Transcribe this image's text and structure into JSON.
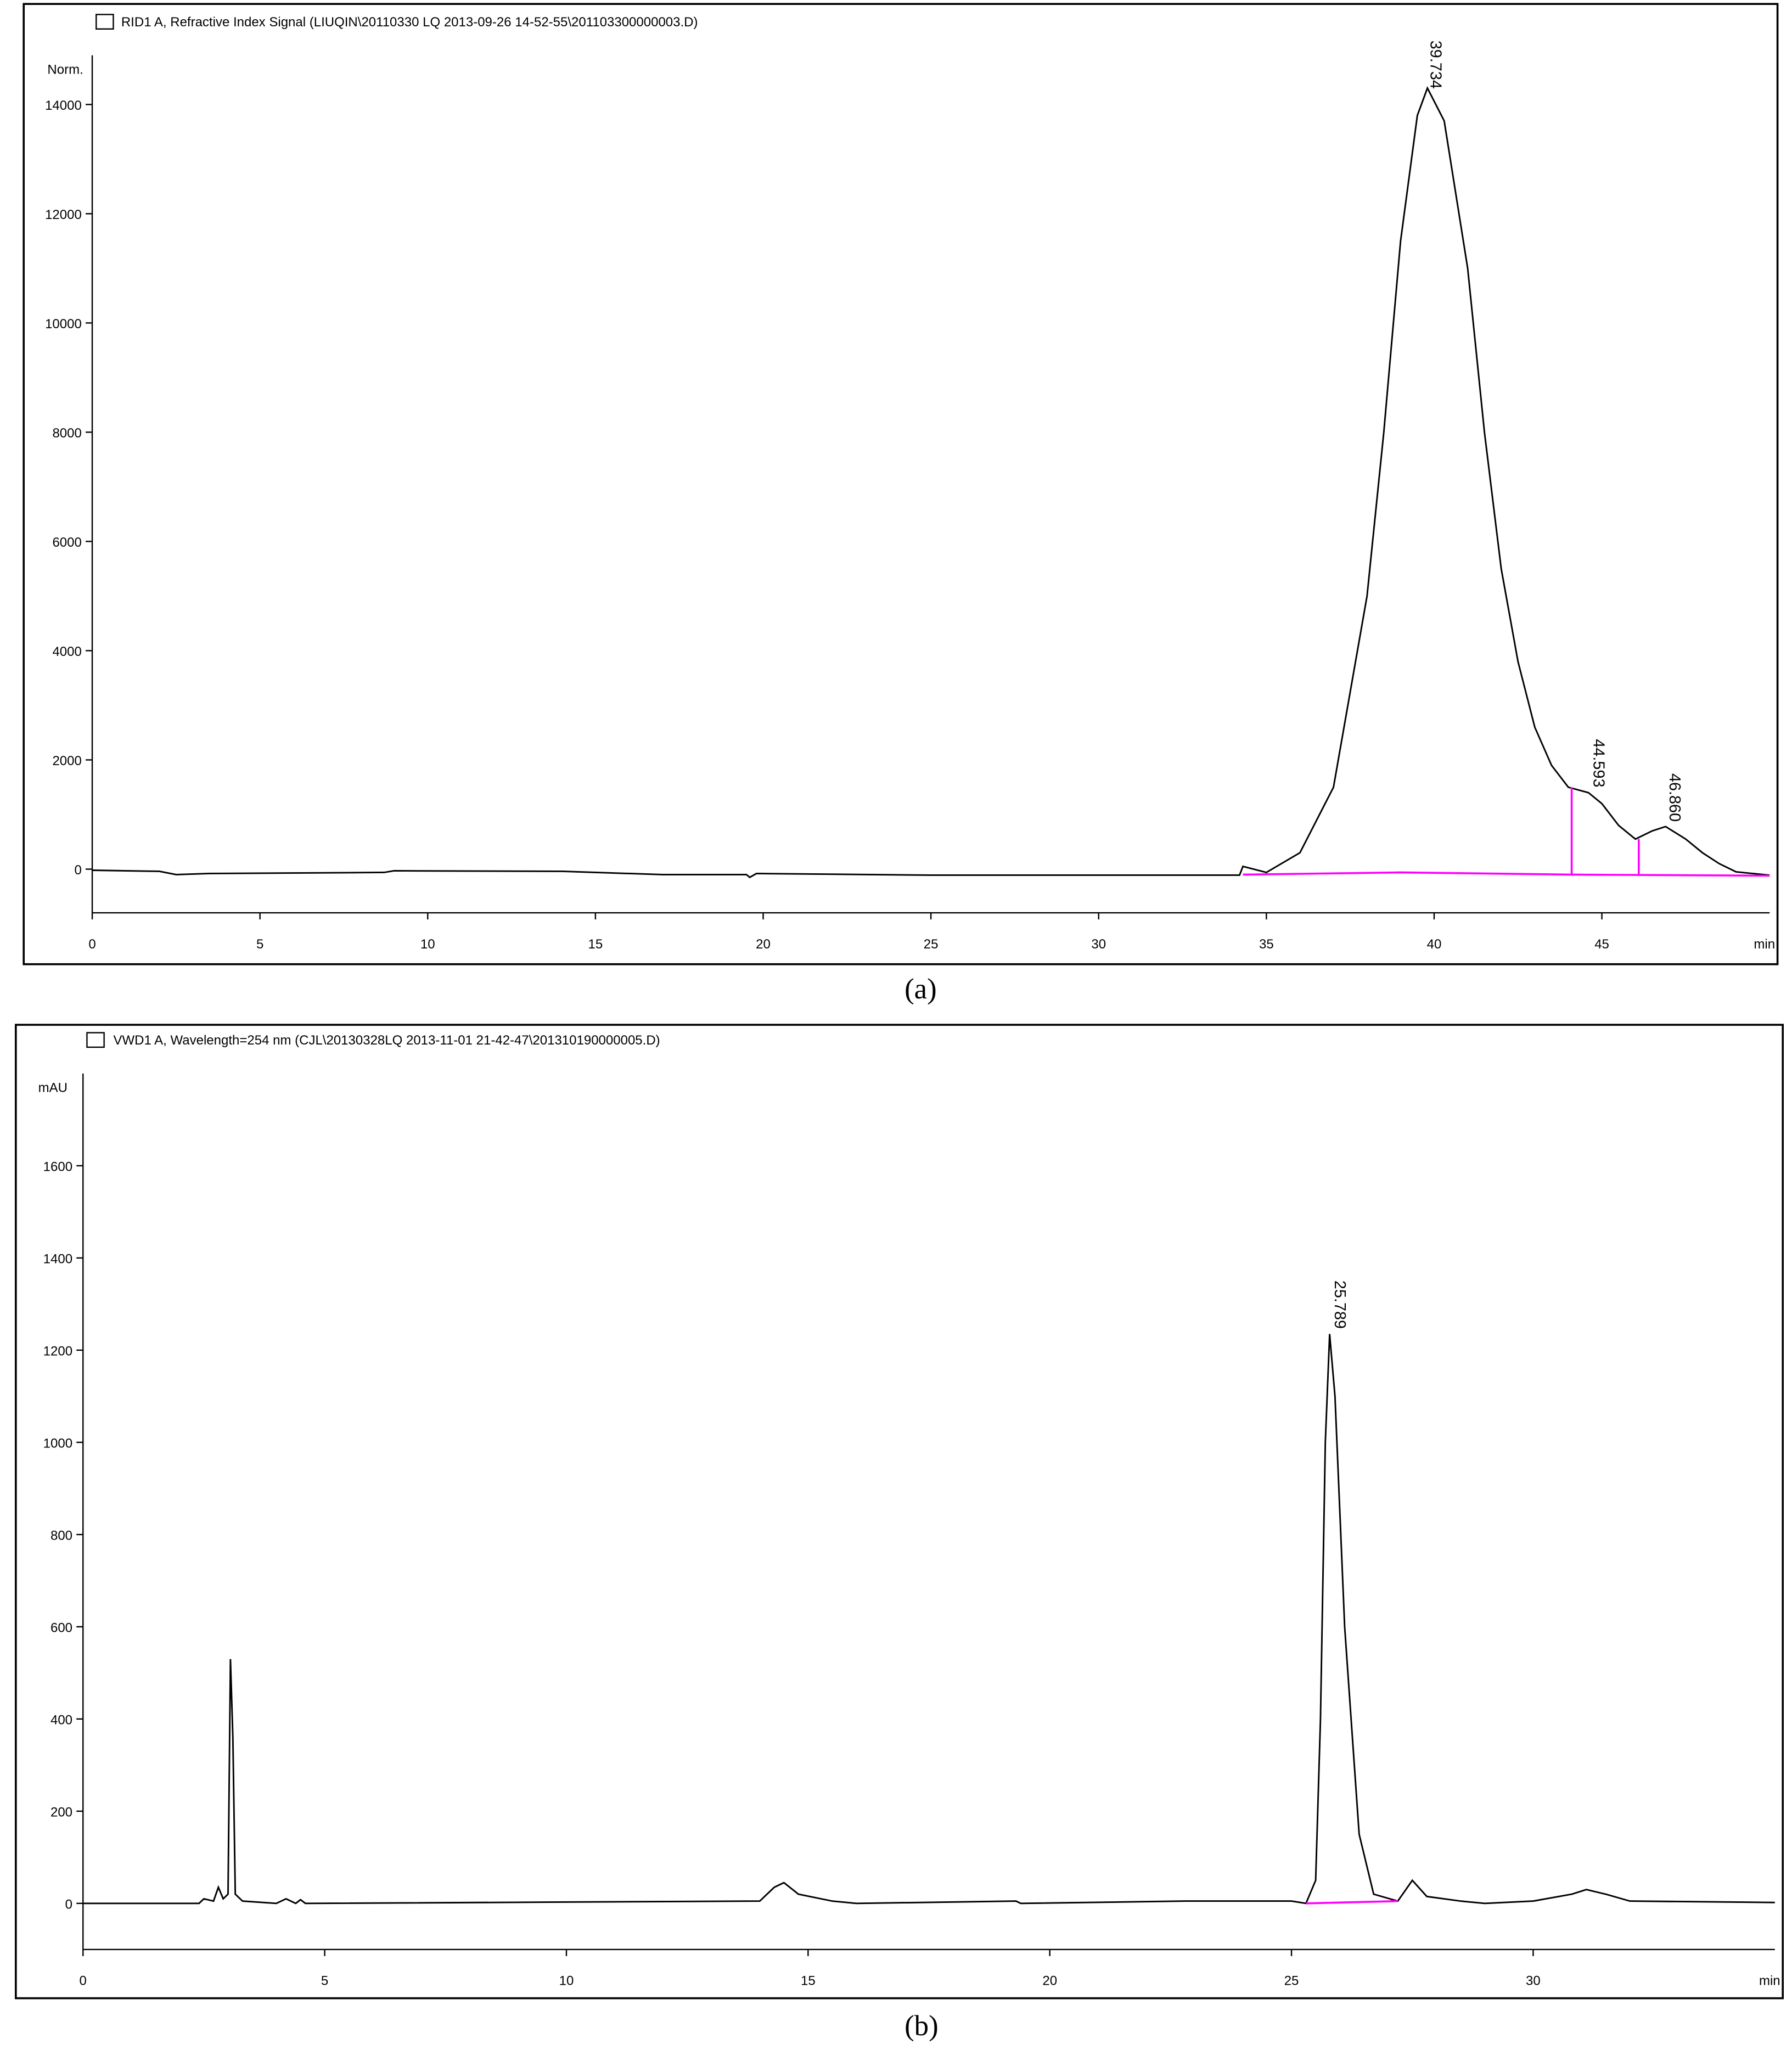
{
  "chart_data": [
    {
      "type": "line",
      "title": "RID1 A, Refractive Index Signal (LIUQIN\\20110330 LQ 2013-09-26 14-52-55\\201103300000003.D)",
      "y_label": "Norm.",
      "x_label": "min",
      "caption": "(a)",
      "xlim": [
        0,
        50
      ],
      "xticks": [
        0,
        5,
        10,
        15,
        20,
        25,
        30,
        35,
        40,
        45
      ],
      "ylim": [
        -800,
        14900
      ],
      "yticks": [
        0,
        2000,
        4000,
        6000,
        8000,
        10000,
        12000,
        14000
      ],
      "series": [
        {
          "color": "#000000",
          "x": [
            0,
            2,
            2.5,
            3.5,
            8.7,
            9,
            14,
            17,
            19.5,
            19.6,
            19.8,
            25,
            34.2,
            34.3,
            35,
            36,
            37,
            38,
            38.5,
            39,
            39.5,
            39.8,
            40.3,
            41,
            41.5,
            42,
            42.5,
            43,
            43.5,
            44,
            44.6,
            45,
            45.5,
            46,
            46.5,
            46.9,
            47.5,
            48,
            48.5,
            49,
            50
          ],
          "values": [
            -20,
            -40,
            -100,
            -80,
            -60,
            -30,
            -40,
            -100,
            -100,
            -150,
            -80,
            -110,
            -110,
            50,
            -60,
            300,
            1500,
            5000,
            8000,
            11500,
            13800,
            14300,
            13700,
            11000,
            8000,
            5500,
            3800,
            2600,
            1900,
            1500,
            1400,
            1200,
            800,
            550,
            700,
            780,
            550,
            300,
            100,
            -50,
            -110
          ]
        },
        {
          "color": "#ff00ff",
          "x": [
            34.3,
            39,
            44.1,
            50
          ],
          "values": [
            -100,
            -60,
            -100,
            -120
          ]
        },
        {
          "color": "#ff00ff",
          "x": [
            44.1,
            44.1
          ],
          "values": [
            -100,
            1500
          ]
        },
        {
          "color": "#ff00ff",
          "x": [
            46.1,
            46.1
          ],
          "values": [
            -100,
            550
          ]
        }
      ],
      "peaks": [
        39.734,
        44.593,
        {
          "value": 46.86,
          "label": "46.860"
        }
      ]
    },
    {
      "type": "line",
      "title": "VWD1 A, Wavelength=254 nm (CJL\\20130328LQ 2013-11-01 21-42-47\\201310190000005.D)",
      "y_label": "mAU",
      "x_label": "min",
      "caption": "(b)",
      "xlim": [
        0,
        35
      ],
      "xticks": [
        0,
        5,
        10,
        15,
        20,
        25,
        30
      ],
      "ylim": [
        -100,
        1800
      ],
      "yticks": [
        0,
        200,
        400,
        600,
        800,
        1000,
        1200,
        1400,
        1600
      ],
      "series": [
        {
          "color": "#000000",
          "x": [
            0,
            2.4,
            2.5,
            2.7,
            2.8,
            2.9,
            3.0,
            3.05,
            3.1,
            3.15,
            3.3,
            4,
            4.2,
            4.4,
            4.5,
            4.6,
            14,
            14.3,
            14.5,
            14.8,
            15.5,
            16,
            19.3,
            19.4,
            22.8,
            25,
            25.3,
            25.5,
            25.6,
            25.7,
            25.789,
            25.9,
            26.1,
            26.4,
            26.7,
            27.2,
            27.5,
            27.8,
            28.5,
            29,
            30,
            30.8,
            31.1,
            31.5,
            32,
            35
          ],
          "values": [
            0,
            0,
            10,
            5,
            35,
            10,
            20,
            530,
            360,
            20,
            5,
            0,
            10,
            0,
            8,
            0,
            5,
            35,
            45,
            20,
            5,
            0,
            5,
            0,
            5,
            5,
            0,
            50,
            400,
            1000,
            1235,
            1100,
            600,
            150,
            20,
            5,
            50,
            15,
            5,
            0,
            5,
            20,
            30,
            20,
            5,
            2
          ]
        },
        {
          "color": "#ff00ff",
          "x": [
            25.3,
            27.2
          ],
          "values": [
            0,
            5
          ]
        }
      ],
      "peaks": [
        25.789
      ]
    }
  ]
}
